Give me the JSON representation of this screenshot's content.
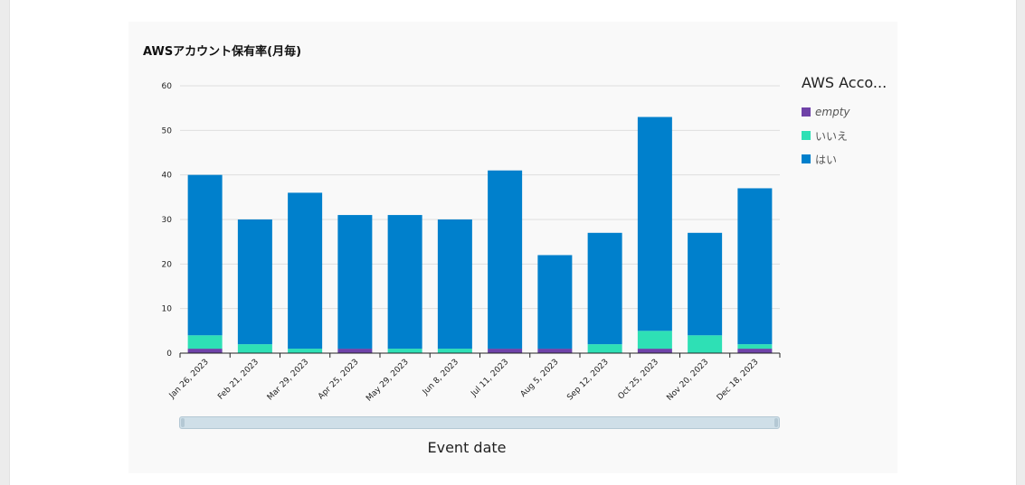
{
  "chart_data": {
    "type": "bar",
    "stacked": true,
    "title": "AWSアカウント保有率(月毎)",
    "xlabel": "Event date",
    "ylabel": "",
    "ylim": [
      0,
      60
    ],
    "yticks": [
      0,
      10,
      20,
      30,
      40,
      50,
      60
    ],
    "grid": true,
    "legend_title": "AWS Acco...",
    "legend_position": "right",
    "categories": [
      "Jan 26, 2023",
      "Feb 21, 2023",
      "Mar 29, 2023",
      "Apr 25, 2023",
      "May 29, 2023",
      "Jun 8, 2023",
      "Jul 11, 2023",
      "Aug 5, 2023",
      "Sep 12, 2023",
      "Oct 25, 2023",
      "Nov 20, 2023",
      "Dec 18, 2023"
    ],
    "series": [
      {
        "name": "empty",
        "color": "#6f42a8",
        "values": [
          1,
          0,
          0,
          1,
          0,
          0,
          1,
          1,
          0,
          1,
          0,
          1
        ]
      },
      {
        "name": "いいえ",
        "color": "#2ee0b5",
        "values": [
          3,
          2,
          1,
          0,
          1,
          1,
          0,
          0,
          2,
          4,
          4,
          1
        ]
      },
      {
        "name": "はい",
        "color": "#0080cc",
        "values": [
          36,
          28,
          35,
          30,
          30,
          29,
          40,
          21,
          25,
          48,
          23,
          35
        ]
      }
    ]
  }
}
